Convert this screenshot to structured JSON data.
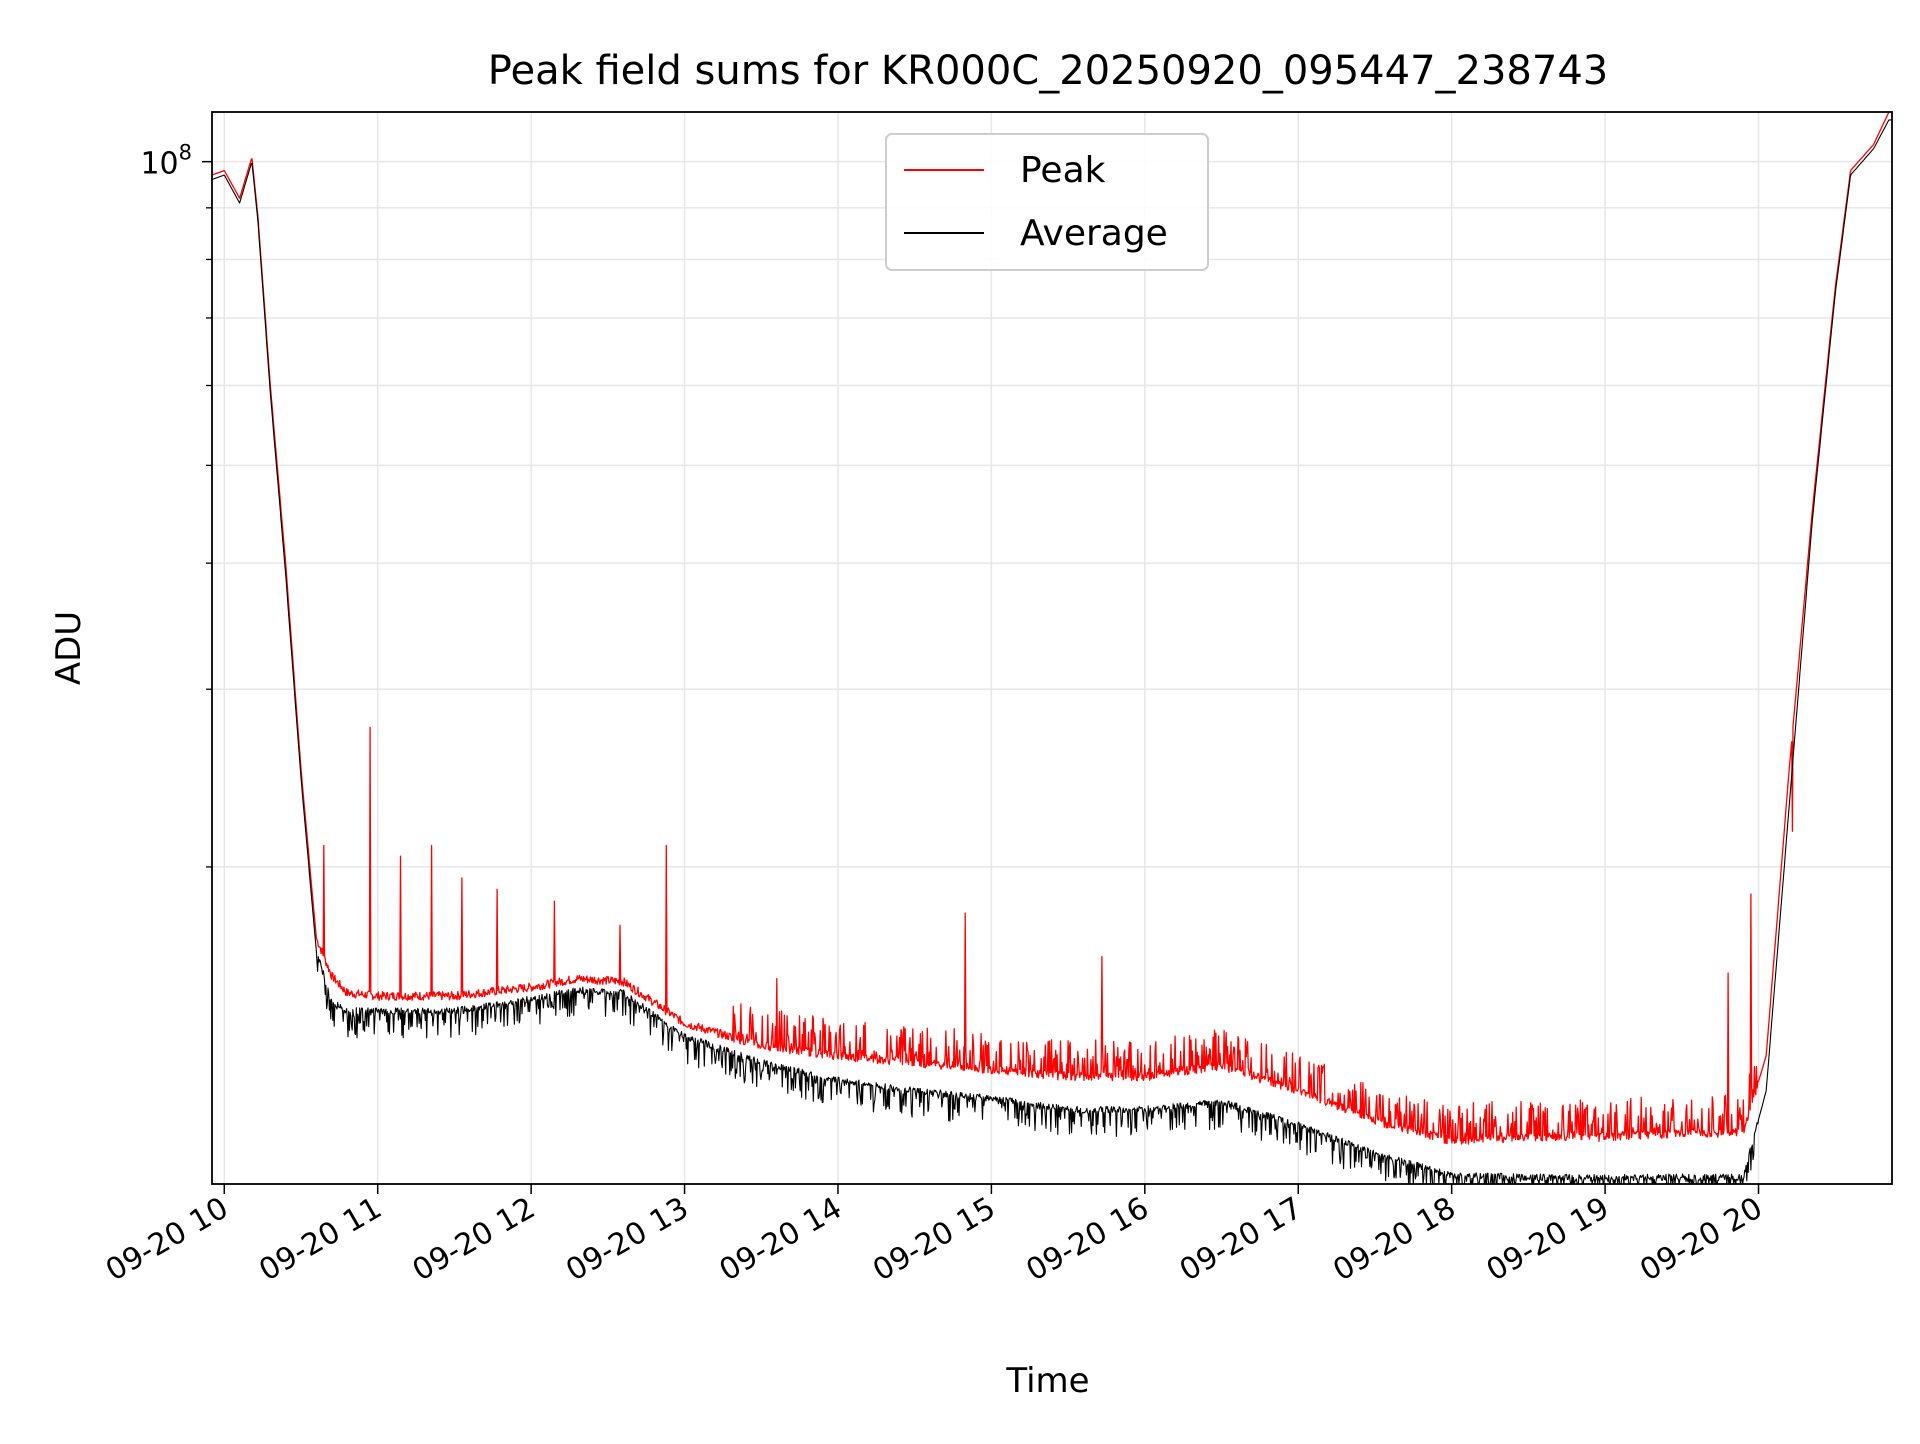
{
  "chart_data": {
    "type": "line",
    "title": "Peak field sums for KR000C_20250920_095447_238743",
    "xlabel": "Time",
    "ylabel": "ADU",
    "yscale": "log",
    "xlim": [
      9.92,
      20.87
    ],
    "ylim": [
      9700000,
      112000000
    ],
    "grid": true,
    "legend_position": "upper-center",
    "x_ticks": [
      {
        "value": 10,
        "label": "09-20 10"
      },
      {
        "value": 11,
        "label": "09-20 11"
      },
      {
        "value": 12,
        "label": "09-20 12"
      },
      {
        "value": 13,
        "label": "09-20 13"
      },
      {
        "value": 14,
        "label": "09-20 14"
      },
      {
        "value": 15,
        "label": "09-20 15"
      },
      {
        "value": 16,
        "label": "09-20 16"
      },
      {
        "value": 17,
        "label": "09-20 17"
      },
      {
        "value": 18,
        "label": "09-20 18"
      },
      {
        "value": 19,
        "label": "09-20 19"
      },
      {
        "value": 20,
        "label": "09-20 20"
      }
    ],
    "y_major_ticks": [
      {
        "value": 100000000,
        "base": "10",
        "exp": "8"
      }
    ],
    "y_minor_ticks": [
      20000000,
      30000000,
      40000000,
      50000000,
      60000000,
      70000000,
      80000000,
      90000000
    ],
    "x_units": "hour of day (2025-09-20)",
    "series": [
      {
        "name": "Peak",
        "color": "#ff0000",
        "points": [
          [
            9.92,
            97000000
          ],
          [
            10.0,
            98000000
          ],
          [
            10.1,
            92000000
          ],
          [
            10.18,
            101000000
          ],
          [
            10.22,
            88000000
          ],
          [
            10.3,
            60000000
          ],
          [
            10.4,
            40000000
          ],
          [
            10.5,
            25000000
          ],
          [
            10.6,
            17000000
          ],
          [
            10.7,
            15600000
          ],
          [
            10.8,
            15000000
          ],
          [
            11.0,
            14900000
          ],
          [
            11.5,
            14900000
          ],
          [
            12.0,
            15200000
          ],
          [
            12.3,
            15500000
          ],
          [
            12.6,
            15400000
          ],
          [
            13.0,
            14000000
          ],
          [
            13.5,
            13300000
          ],
          [
            14.0,
            13000000
          ],
          [
            14.5,
            12800000
          ],
          [
            15.0,
            12600000
          ],
          [
            15.5,
            12400000
          ],
          [
            16.0,
            12400000
          ],
          [
            16.5,
            12700000
          ],
          [
            17.0,
            12000000
          ],
          [
            17.5,
            11200000
          ],
          [
            18.0,
            10700000
          ],
          [
            18.5,
            10800000
          ],
          [
            19.0,
            10800000
          ],
          [
            19.5,
            10900000
          ],
          [
            19.9,
            10900000
          ],
          [
            20.05,
            13000000
          ],
          [
            20.2,
            25000000
          ],
          [
            20.35,
            45000000
          ],
          [
            20.5,
            75000000
          ],
          [
            20.6,
            98000000
          ],
          [
            20.75,
            104000000
          ],
          [
            20.85,
            112000000
          ]
        ],
        "spikes": [
          [
            10.65,
            21000000
          ],
          [
            10.95,
            27500000
          ],
          [
            11.15,
            20500000
          ],
          [
            11.35,
            21000000
          ],
          [
            11.55,
            19500000
          ],
          [
            11.78,
            19000000
          ],
          [
            12.15,
            18500000
          ],
          [
            12.58,
            17500000
          ],
          [
            12.88,
            21000000
          ],
          [
            13.6,
            15500000
          ],
          [
            14.83,
            18000000
          ],
          [
            15.72,
            16300000
          ],
          [
            19.8,
            15700000
          ],
          [
            19.95,
            18800000
          ],
          [
            20.22,
            21700000
          ]
        ]
      },
      {
        "name": "Average",
        "color": "#000000",
        "points": [
          [
            9.92,
            96000000
          ],
          [
            10.0,
            97000000
          ],
          [
            10.1,
            91000000
          ],
          [
            10.18,
            100000000
          ],
          [
            10.22,
            87000000
          ],
          [
            10.3,
            59000000
          ],
          [
            10.4,
            39000000
          ],
          [
            10.5,
            24500000
          ],
          [
            10.6,
            16500000
          ],
          [
            10.7,
            14700000
          ],
          [
            10.8,
            14400000
          ],
          [
            11.0,
            14400000
          ],
          [
            11.5,
            14400000
          ],
          [
            12.0,
            14800000
          ],
          [
            12.3,
            15100000
          ],
          [
            12.6,
            15000000
          ],
          [
            13.0,
            13600000
          ],
          [
            13.5,
            12800000
          ],
          [
            14.0,
            12300000
          ],
          [
            14.5,
            12000000
          ],
          [
            15.0,
            11800000
          ],
          [
            15.5,
            11500000
          ],
          [
            16.0,
            11500000
          ],
          [
            16.5,
            11700000
          ],
          [
            17.0,
            11100000
          ],
          [
            17.5,
            10400000
          ],
          [
            18.0,
            9900000
          ],
          [
            18.5,
            9850000
          ],
          [
            19.0,
            9850000
          ],
          [
            19.5,
            9850000
          ],
          [
            19.9,
            9850000
          ],
          [
            20.05,
            12000000
          ],
          [
            20.2,
            23000000
          ],
          [
            20.35,
            44000000
          ],
          [
            20.5,
            74000000
          ],
          [
            20.6,
            97000000
          ],
          [
            20.75,
            103000000
          ],
          [
            20.85,
            110000000
          ]
        ]
      }
    ]
  }
}
